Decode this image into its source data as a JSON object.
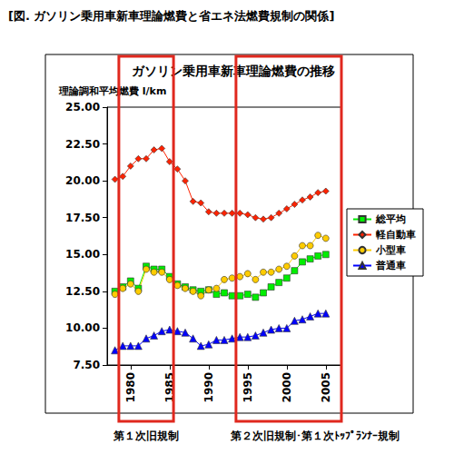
{
  "chart_data": {
    "type": "line",
    "figure_title": "[図. ガソリン乗用車新車理論燃費と省エネ法燃費規制の関係]",
    "title": "ガソリン乗用車新車理論燃費の推移",
    "ylabel": "理論調和平均燃費 l/km",
    "x": [
      1978,
      1979,
      1980,
      1981,
      1982,
      1983,
      1984,
      1985,
      1986,
      1987,
      1988,
      1989,
      1990,
      1991,
      1992,
      1993,
      1994,
      1995,
      1996,
      1997,
      1998,
      1999,
      2000,
      2001,
      2002,
      2003,
      2004,
      2005
    ],
    "series": [
      {
        "name": "総平均",
        "color": "#00ee00",
        "marker": "square",
        "values": [
          12.5,
          12.8,
          13.2,
          12.7,
          14.2,
          14.0,
          14.0,
          13.5,
          13.0,
          12.8,
          12.6,
          12.5,
          12.6,
          12.3,
          12.4,
          12.2,
          12.2,
          12.3,
          12.1,
          12.4,
          12.8,
          13.1,
          13.4,
          13.9,
          14.5,
          14.7,
          14.9,
          15.0
        ]
      },
      {
        "name": "軽自動車",
        "color": "#ff2200",
        "marker": "diamond",
        "values": [
          20.1,
          20.3,
          21.0,
          21.5,
          21.5,
          22.1,
          22.2,
          21.3,
          20.8,
          20.0,
          18.6,
          18.5,
          17.9,
          17.8,
          17.8,
          17.8,
          17.8,
          17.7,
          17.5,
          17.4,
          17.5,
          17.8,
          18.1,
          18.4,
          18.7,
          18.9,
          19.2,
          19.3
        ]
      },
      {
        "name": "小型車",
        "color": "#ffcc00",
        "marker": "circle",
        "values": [
          12.3,
          12.7,
          13.0,
          12.5,
          14.0,
          13.8,
          13.8,
          13.3,
          12.9,
          12.7,
          12.5,
          12.2,
          12.6,
          12.7,
          13.3,
          13.4,
          13.5,
          13.7,
          13.3,
          13.8,
          13.8,
          14.0,
          14.2,
          14.9,
          15.6,
          15.6,
          16.3,
          16.1
        ]
      },
      {
        "name": "普通車",
        "color": "#0000ff",
        "marker": "triangle",
        "values": [
          8.5,
          8.8,
          8.8,
          8.8,
          9.3,
          9.5,
          9.8,
          9.9,
          9.8,
          9.7,
          9.3,
          8.8,
          8.9,
          9.2,
          9.2,
          9.3,
          9.4,
          9.4,
          9.5,
          9.7,
          9.9,
          10.0,
          10.0,
          10.5,
          10.6,
          10.8,
          11.0,
          11.0
        ]
      }
    ],
    "xlim": [
      1977,
      2007
    ],
    "xticks": [
      1980,
      1985,
      1990,
      1995,
      2000,
      2005
    ],
    "ylim": [
      7.5,
      25
    ],
    "yticks": [
      {
        "value": 7.5,
        "label": "7.50"
      },
      {
        "value": 10,
        "label": "10.00"
      },
      {
        "value": 12.5,
        "label": "12.50"
      },
      {
        "value": 15,
        "label": "15.00"
      },
      {
        "value": 17.5,
        "label": "17.50"
      },
      {
        "value": 20,
        "label": "20.00"
      },
      {
        "value": 22.5,
        "label": "22.50"
      },
      {
        "value": 25,
        "label": "25.00"
      }
    ],
    "grid": false,
    "legend": "right",
    "annotations": [
      {
        "text": "第１次旧規制",
        "x_range": [
          1978.5,
          1985.5
        ],
        "color": "#e0281e"
      },
      {
        "text": "第２次旧規制･第１次ﾄｯﾌﾟﾗﾝﾅｰ規制",
        "x_range": [
          1993.5,
          2007
        ],
        "color": "#e0281e"
      }
    ]
  }
}
